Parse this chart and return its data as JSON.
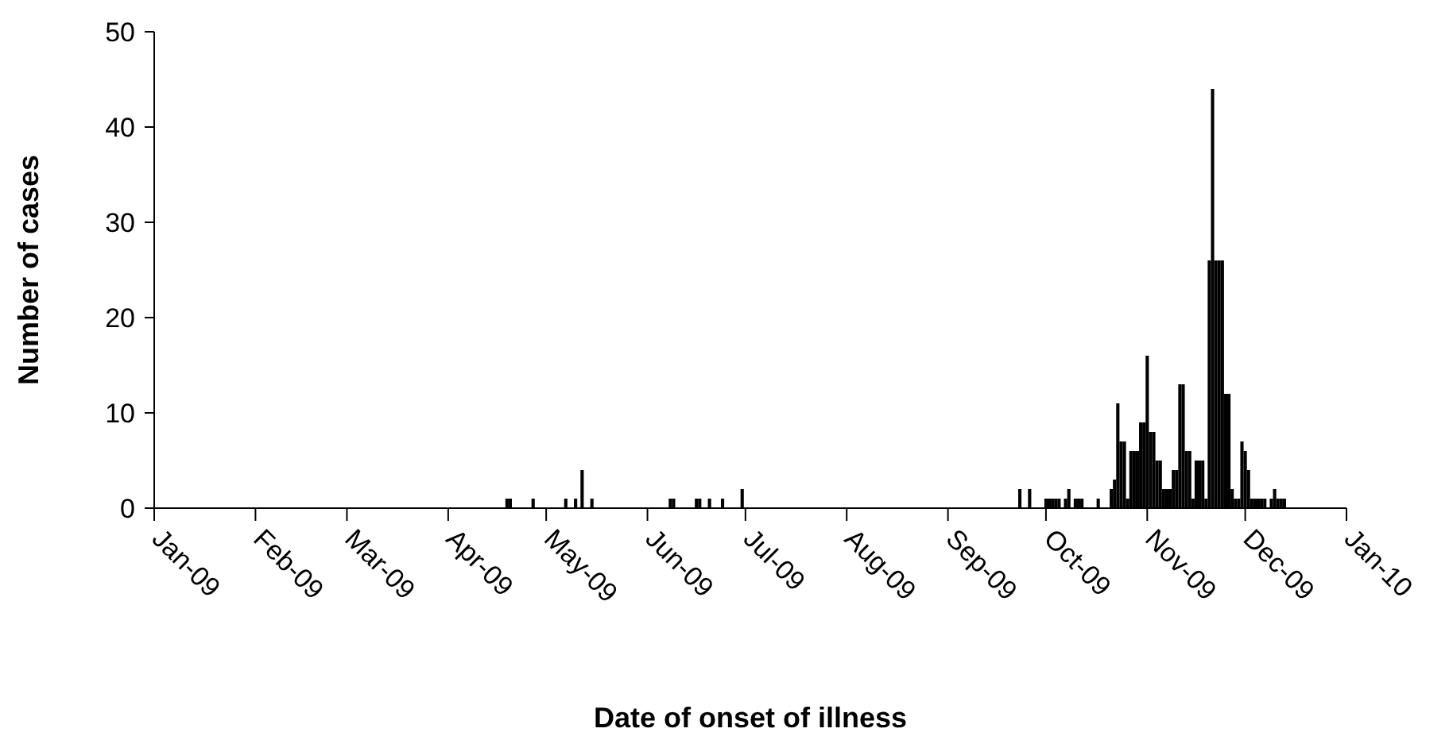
{
  "chart_data": {
    "type": "bar",
    "xlabel": "Date of onset of illness",
    "ylabel": "Number of cases",
    "color": "#000000",
    "x": [
      "2009-04-19",
      "2009-04-20",
      "2009-04-27",
      "2009-05-07",
      "2009-05-10",
      "2009-05-12",
      "2009-05-15",
      "2009-06-08",
      "2009-06-09",
      "2009-06-16",
      "2009-06-17",
      "2009-06-20",
      "2009-06-24",
      "2009-06-30",
      "2009-09-23",
      "2009-09-26",
      "2009-10-01",
      "2009-10-02",
      "2009-10-03",
      "2009-10-04",
      "2009-10-05",
      "2009-10-07",
      "2009-10-08",
      "2009-10-10",
      "2009-10-11",
      "2009-10-12",
      "2009-10-17",
      "2009-10-21",
      "2009-10-22",
      "2009-10-23",
      "2009-10-24",
      "2009-10-25",
      "2009-10-26",
      "2009-10-27",
      "2009-10-28",
      "2009-10-29",
      "2009-10-30",
      "2009-10-31",
      "2009-11-01",
      "2009-11-02",
      "2009-11-03",
      "2009-11-04",
      "2009-11-05",
      "2009-11-06",
      "2009-11-07",
      "2009-11-08",
      "2009-11-09",
      "2009-11-10",
      "2009-11-11",
      "2009-11-12",
      "2009-11-13",
      "2009-11-14",
      "2009-11-15",
      "2009-11-16",
      "2009-11-17",
      "2009-11-18",
      "2009-11-19",
      "2009-11-20",
      "2009-11-21",
      "2009-11-22",
      "2009-11-23",
      "2009-11-24",
      "2009-11-25",
      "2009-11-26",
      "2009-11-27",
      "2009-11-28",
      "2009-11-29",
      "2009-11-30",
      "2009-12-01",
      "2009-12-02",
      "2009-12-03",
      "2009-12-04",
      "2009-12-05",
      "2009-12-06",
      "2009-12-07",
      "2009-12-09",
      "2009-12-10",
      "2009-12-11",
      "2009-12-12",
      "2009-12-13"
    ],
    "values": [
      1,
      1,
      1,
      1,
      1,
      4,
      1,
      1,
      1,
      1,
      1,
      1,
      1,
      2,
      2,
      2,
      1,
      1,
      1,
      1,
      1,
      1,
      2,
      1,
      1,
      1,
      1,
      2,
      3,
      11,
      7,
      7,
      1,
      6,
      6,
      6,
      9,
      9,
      16,
      8,
      8,
      5,
      5,
      2,
      2,
      2,
      4,
      4,
      13,
      13,
      6,
      6,
      1,
      5,
      5,
      5,
      1,
      26,
      44,
      26,
      26,
      26,
      12,
      12,
      2,
      1,
      1,
      7,
      6,
      4,
      1,
      1,
      1,
      1,
      1,
      1,
      2,
      1,
      1,
      1
    ],
    "xlim": [
      "2009-01-01",
      "2010-01-01"
    ],
    "xticks": [
      {
        "value": "2009-01-01",
        "label": "Jan-09"
      },
      {
        "value": "2009-02-01",
        "label": "Feb-09"
      },
      {
        "value": "2009-03-01",
        "label": "Mar-09"
      },
      {
        "value": "2009-04-01",
        "label": "Apr-09"
      },
      {
        "value": "2009-05-01",
        "label": "May-09"
      },
      {
        "value": "2009-06-01",
        "label": "Jun-09"
      },
      {
        "value": "2009-07-01",
        "label": "Jul-09"
      },
      {
        "value": "2009-08-01",
        "label": "Aug-09"
      },
      {
        "value": "2009-09-01",
        "label": "Sep-09"
      },
      {
        "value": "2009-10-01",
        "label": "Oct-09"
      },
      {
        "value": "2009-11-01",
        "label": "Nov-09"
      },
      {
        "value": "2009-12-01",
        "label": "Dec-09"
      },
      {
        "value": "2010-01-01",
        "label": "Jan-10"
      }
    ],
    "ylim": [
      0,
      50
    ],
    "yticks": [
      0,
      10,
      20,
      30,
      40,
      50
    ],
    "grid": false
  }
}
